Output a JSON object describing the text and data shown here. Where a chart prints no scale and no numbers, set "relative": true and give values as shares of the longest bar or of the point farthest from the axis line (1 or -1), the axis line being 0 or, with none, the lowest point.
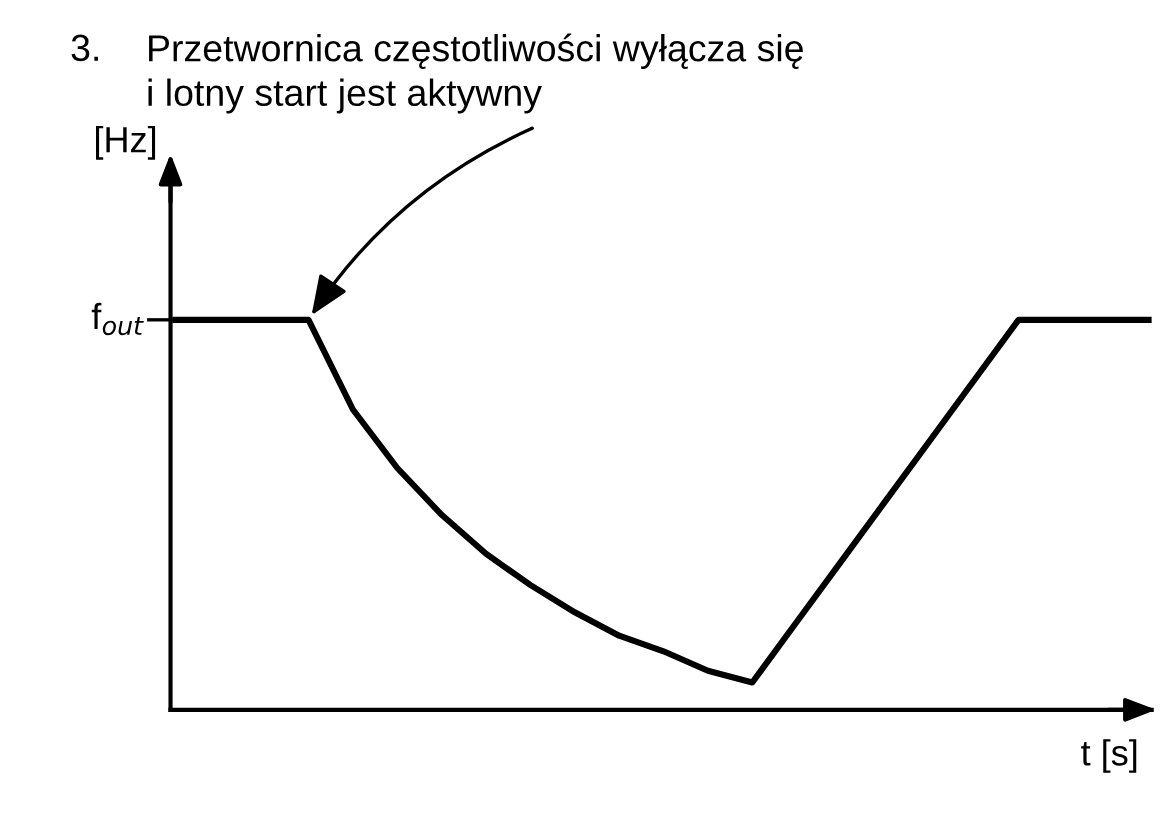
{
  "chart_data": {
    "type": "line",
    "relative": true,
    "title": "Przetwornica częstotliwości wyłącza się\ni lotny start jest aktywny",
    "annotations": [
      "3.",
      "f$_{out}$"
    ],
    "ylabel": "[Hz]",
    "xlabel": "t [s]",
    "categories": [
      null,
      null,
      null,
      null,
      null,
      null,
      null,
      null,
      null,
      null,
      null,
      null,
      null,
      null,
      null,
      null,
      null,
      null,
      null,
      null,
      null,
      null,
      null
    ],
    "series": [
      {
        "color": "#000000",
        "values": [
          1,
          1,
          1,
          1,
          0.77,
          0.62,
          0.5,
          0.4,
          0.32,
          0.25,
          0.19,
          0.15,
          0.1,
          0.07,
          0.225,
          0.38,
          0.535,
          0.69,
          0.845,
          1,
          1,
          1,
          1
        ]
      }
    ],
    "legend": false,
    "marker": "none",
    "line_style": "solid"
  }
}
